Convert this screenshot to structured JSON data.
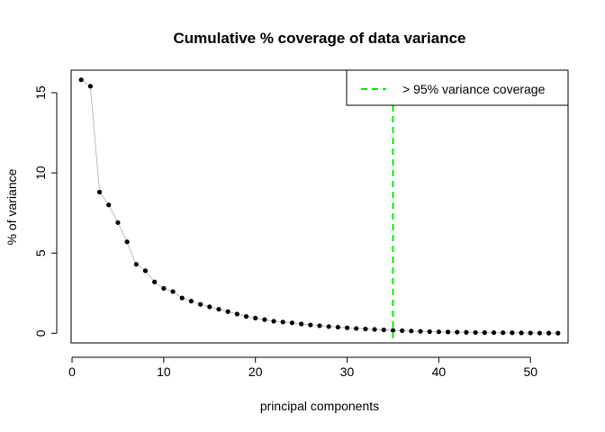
{
  "chart_data": {
    "type": "scatter",
    "title": "Cumulative % coverage of data variance",
    "xlabel": "principal components",
    "ylabel": "% of variance",
    "xlim": [
      -0.1,
      54.1
    ],
    "ylim": [
      -0.6,
      16.4
    ],
    "x_ticks": [
      0,
      10,
      20,
      30,
      40,
      50
    ],
    "y_ticks": [
      0,
      5,
      10,
      15
    ],
    "grid": false,
    "legend_position": "top-right",
    "series": [
      {
        "type": "line+points",
        "color": "#000000",
        "line_color": "#bebebe",
        "x": [
          1,
          2,
          3,
          4,
          5,
          6,
          7,
          8,
          9,
          10,
          11,
          12,
          13,
          14,
          15,
          16,
          17,
          18,
          19,
          20,
          21,
          22,
          23,
          24,
          25,
          26,
          27,
          28,
          29,
          30,
          31,
          32,
          33,
          34,
          35,
          36,
          37,
          38,
          39,
          40,
          41,
          42,
          43,
          44,
          45,
          46,
          47,
          48,
          49,
          50,
          51,
          52,
          53
        ],
        "y": [
          15.8,
          15.4,
          8.8,
          8.0,
          6.9,
          5.7,
          4.3,
          3.9,
          3.2,
          2.8,
          2.6,
          2.2,
          2.0,
          1.8,
          1.65,
          1.5,
          1.35,
          1.2,
          1.05,
          0.95,
          0.85,
          0.75,
          0.7,
          0.65,
          0.58,
          0.52,
          0.47,
          0.42,
          0.38,
          0.34,
          0.3,
          0.27,
          0.24,
          0.21,
          0.18,
          0.16,
          0.14,
          0.12,
          0.1,
          0.09,
          0.08,
          0.07,
          0.06,
          0.05,
          0.045,
          0.04,
          0.035,
          0.03,
          0.025,
          0.02,
          0.015,
          0.01,
          0.01
        ]
      }
    ],
    "reference_line": {
      "orientation": "vertical",
      "x": 35,
      "color": "#00ee00",
      "style": "dashed",
      "name": "> 95% variance coverage"
    }
  }
}
